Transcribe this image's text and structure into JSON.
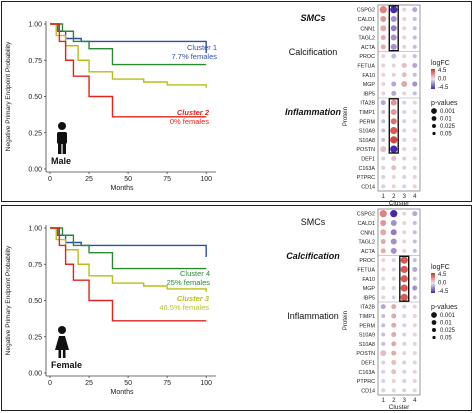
{
  "panels": [
    {
      "km": {
        "ylabel": "Negative Primary Endpoint Probability",
        "xlabel": "Months",
        "yticks": [
          "0.00",
          "0.25",
          "0.50",
          "0.75",
          "1.00"
        ],
        "xticks": [
          "0",
          "25",
          "50",
          "75",
          "100"
        ],
        "sex_label": "Male",
        "annotations": [
          {
            "title": "Cluster 1",
            "subtitle": "7.7% females",
            "color": "#2e4fa8",
            "italic": false
          },
          {
            "title": "Cluster 2",
            "subtitle": "0% females",
            "color": "#e0241f",
            "italic": true
          }
        ]
      },
      "dot": {
        "groups": [
          {
            "label": "SMCs",
            "bold": true
          },
          {
            "label": "Calcification",
            "bold": false
          },
          {
            "label": "Inflammation",
            "bold": true
          }
        ],
        "protein_axis_label": "Protein",
        "cluster_axis_label": "Cluster",
        "proteins": [
          "CSPG2",
          "CALD1",
          "CNN1",
          "TAGL2",
          "ACTA",
          "PROC",
          "FETUA",
          "FA10",
          "MGP",
          "IBP5",
          "ITA2B",
          "TIMP1",
          "PERM",
          "S10A9",
          "S10A8",
          "POSTN",
          "DEF1",
          "C163A",
          "PTPRC",
          "CD14"
        ],
        "clusters": [
          "1",
          "2",
          "3",
          "4"
        ],
        "highlight_column": "2",
        "legend_logfc_title": "logFC",
        "legend_logfc_ticks": [
          "4.5",
          "0.0",
          "-4.5"
        ],
        "legend_p_title": "p-values",
        "legend_p_ticks": [
          "0.001",
          "0.01",
          "0.025",
          "0.05"
        ]
      }
    },
    {
      "km": {
        "ylabel": "Negative Primary Endpoint Probability",
        "xlabel": "Months",
        "yticks": [
          "0.00",
          "0.25",
          "0.50",
          "0.75",
          "1.00"
        ],
        "xticks": [
          "0",
          "25",
          "50",
          "75",
          "100"
        ],
        "sex_label": "Female",
        "annotations": [
          {
            "title": "Cluster 4",
            "subtitle": "25% females",
            "color": "#2a8a2f",
            "italic": false
          },
          {
            "title": "Cluster 3",
            "subtitle": "46.5% females",
            "color": "#b8bf1a",
            "italic": true
          }
        ]
      },
      "dot": {
        "groups": [
          {
            "label": "SMCs",
            "bold": false
          },
          {
            "label": "Calcification",
            "bold": true
          },
          {
            "label": "Inflammation",
            "bold": false
          }
        ],
        "protein_axis_label": "Protein",
        "cluster_axis_label": "Cluster",
        "proteins": [
          "CSPG2",
          "CALD1",
          "CNN1",
          "TAGL2",
          "ACTA",
          "PROC",
          "FETUA",
          "FA10",
          "MGP",
          "IBP5",
          "ITA2B",
          "TIMP1",
          "PERM",
          "S10A9",
          "S10A8",
          "POSTN",
          "DEF1",
          "C163A",
          "PTPRC",
          "CD14"
        ],
        "clusters": [
          "1",
          "2",
          "3",
          "4"
        ],
        "highlight_column": "3",
        "legend_logfc_title": "logFC",
        "legend_logfc_ticks": [
          "4.5",
          "0.0",
          "-4.5"
        ],
        "legend_p_title": "p-values",
        "legend_p_ticks": [
          "0.001",
          "0.01",
          "0.025",
          "0.05"
        ]
      }
    }
  ],
  "chart_data": [
    {
      "type": "line",
      "xlabel": "Months",
      "ylabel": "Negative Primary Endpoint Probability",
      "xlim": [
        0,
        105
      ],
      "ylim": [
        0,
        1
      ],
      "series": [
        {
          "name": "Cluster 1",
          "color": "#2e4fa8",
          "x": [
            0,
            5,
            10,
            20,
            100
          ],
          "y": [
            1.0,
            0.95,
            0.9,
            0.88,
            0.8
          ]
        },
        {
          "name": "Cluster 4",
          "color": "#2a8a2f",
          "x": [
            0,
            8,
            15,
            25,
            40,
            100
          ],
          "y": [
            1.0,
            0.95,
            0.88,
            0.83,
            0.72,
            0.72
          ]
        },
        {
          "name": "Cluster 3",
          "color": "#b8bf1a",
          "x": [
            0,
            4,
            10,
            18,
            25,
            40,
            60,
            75,
            100
          ],
          "y": [
            1.0,
            0.92,
            0.85,
            0.75,
            0.67,
            0.62,
            0.6,
            0.58,
            0.56
          ]
        },
        {
          "name": "Cluster 2",
          "color": "#e0241f",
          "x": [
            0,
            6,
            10,
            15,
            25,
            40,
            100
          ],
          "y": [
            1.0,
            0.88,
            0.75,
            0.64,
            0.5,
            0.36,
            0.36
          ]
        }
      ]
    },
    {
      "type": "line",
      "xlabel": "Months",
      "ylabel": "Negative Primary Endpoint Probability",
      "xlim": [
        0,
        105
      ],
      "ylim": [
        0,
        1
      ],
      "series": [
        {
          "name": "Cluster 1",
          "color": "#2e4fa8",
          "x": [
            0,
            5,
            10,
            20,
            100
          ],
          "y": [
            1.0,
            0.95,
            0.9,
            0.88,
            0.8
          ]
        },
        {
          "name": "Cluster 4",
          "color": "#2a8a2f",
          "x": [
            0,
            8,
            15,
            25,
            40,
            100
          ],
          "y": [
            1.0,
            0.95,
            0.88,
            0.83,
            0.72,
            0.72
          ]
        },
        {
          "name": "Cluster 3",
          "color": "#b8bf1a",
          "x": [
            0,
            4,
            10,
            18,
            25,
            40,
            60,
            75,
            100
          ],
          "y": [
            1.0,
            0.92,
            0.85,
            0.75,
            0.67,
            0.62,
            0.6,
            0.58,
            0.56
          ]
        },
        {
          "name": "Cluster 2",
          "color": "#e0241f",
          "x": [
            0,
            6,
            10,
            15,
            25,
            40,
            100
          ],
          "y": [
            1.0,
            0.88,
            0.75,
            0.64,
            0.5,
            0.36,
            0.36
          ]
        }
      ]
    },
    {
      "type": "heatmap",
      "xlabel": "Cluster",
      "ylabel": "Protein",
      "note": "logFC color scale -4.5 to 4.5; p-value size scale",
      "rows": [
        "CSPG2",
        "CALD1",
        "CNN1",
        "TAGL2",
        "ACTA",
        "PROC",
        "FETUA",
        "FA10",
        "MGP",
        "IBP5",
        "ITA2B",
        "TIMP1",
        "PERM",
        "S10A9",
        "S10A8",
        "POSTN",
        "DEF1",
        "C163A",
        "PTPRC",
        "CD14"
      ],
      "columns": [
        "1",
        "2",
        "3",
        "4"
      ],
      "logfc": [
        [
          2.5,
          -4.5,
          0.5,
          -1.5
        ],
        [
          2.0,
          -2.0,
          0.5,
          -1.0
        ],
        [
          1.5,
          -2.5,
          0.5,
          -1.0
        ],
        [
          1.5,
          -2.0,
          0.5,
          -1.0
        ],
        [
          1.5,
          -2.0,
          0.5,
          -1.0
        ],
        [
          0.5,
          -1.0,
          0.5,
          -1.0
        ],
        [
          0.5,
          0.5,
          1.0,
          -1.5
        ],
        [
          0.5,
          0.5,
          1.0,
          -1.0
        ],
        [
          0.5,
          -1.5,
          1.5,
          -2.0
        ],
        [
          0.5,
          -1.5,
          0.5,
          -1.0
        ],
        [
          -1.5,
          2.0,
          -0.5,
          0.5
        ],
        [
          -1.0,
          2.0,
          -0.5,
          0.5
        ],
        [
          -1.0,
          3.0,
          -0.5,
          0.5
        ],
        [
          -1.0,
          3.5,
          -0.5,
          0.5
        ],
        [
          -1.0,
          4.0,
          -0.5,
          0.5
        ],
        [
          1.0,
          -4.5,
          0.5,
          0.5
        ],
        [
          -0.5,
          1.0,
          -0.5,
          0.5
        ],
        [
          -0.5,
          1.0,
          -0.5,
          0.5
        ],
        [
          -0.5,
          0.5,
          -0.5,
          0.5
        ],
        [
          -0.5,
          0.5,
          -0.5,
          0.5
        ]
      ],
      "pvalue": [
        [
          0.001,
          0.001,
          0.05,
          0.025
        ],
        [
          0.01,
          0.01,
          0.05,
          0.05
        ],
        [
          0.01,
          0.01,
          0.05,
          0.05
        ],
        [
          0.025,
          0.01,
          0.05,
          0.05
        ],
        [
          0.025,
          0.01,
          0.05,
          0.05
        ],
        [
          0.05,
          0.025,
          0.05,
          0.05
        ],
        [
          0.05,
          0.05,
          0.025,
          0.025
        ],
        [
          0.05,
          0.05,
          0.025,
          0.05
        ],
        [
          0.05,
          0.025,
          0.01,
          0.025
        ],
        [
          0.05,
          0.025,
          0.05,
          0.05
        ],
        [
          0.025,
          0.01,
          0.05,
          0.05
        ],
        [
          0.05,
          0.01,
          0.05,
          0.05
        ],
        [
          0.05,
          0.01,
          0.05,
          0.05
        ],
        [
          0.05,
          0.001,
          0.05,
          0.05
        ],
        [
          0.05,
          0.001,
          0.05,
          0.05
        ],
        [
          0.01,
          0.001,
          0.05,
          0.05
        ],
        [
          0.05,
          0.025,
          0.05,
          0.05
        ],
        [
          0.05,
          0.025,
          0.05,
          0.05
        ],
        [
          0.05,
          0.05,
          0.05,
          0.05
        ],
        [
          0.05,
          0.05,
          0.05,
          0.05
        ]
      ]
    }
  ]
}
